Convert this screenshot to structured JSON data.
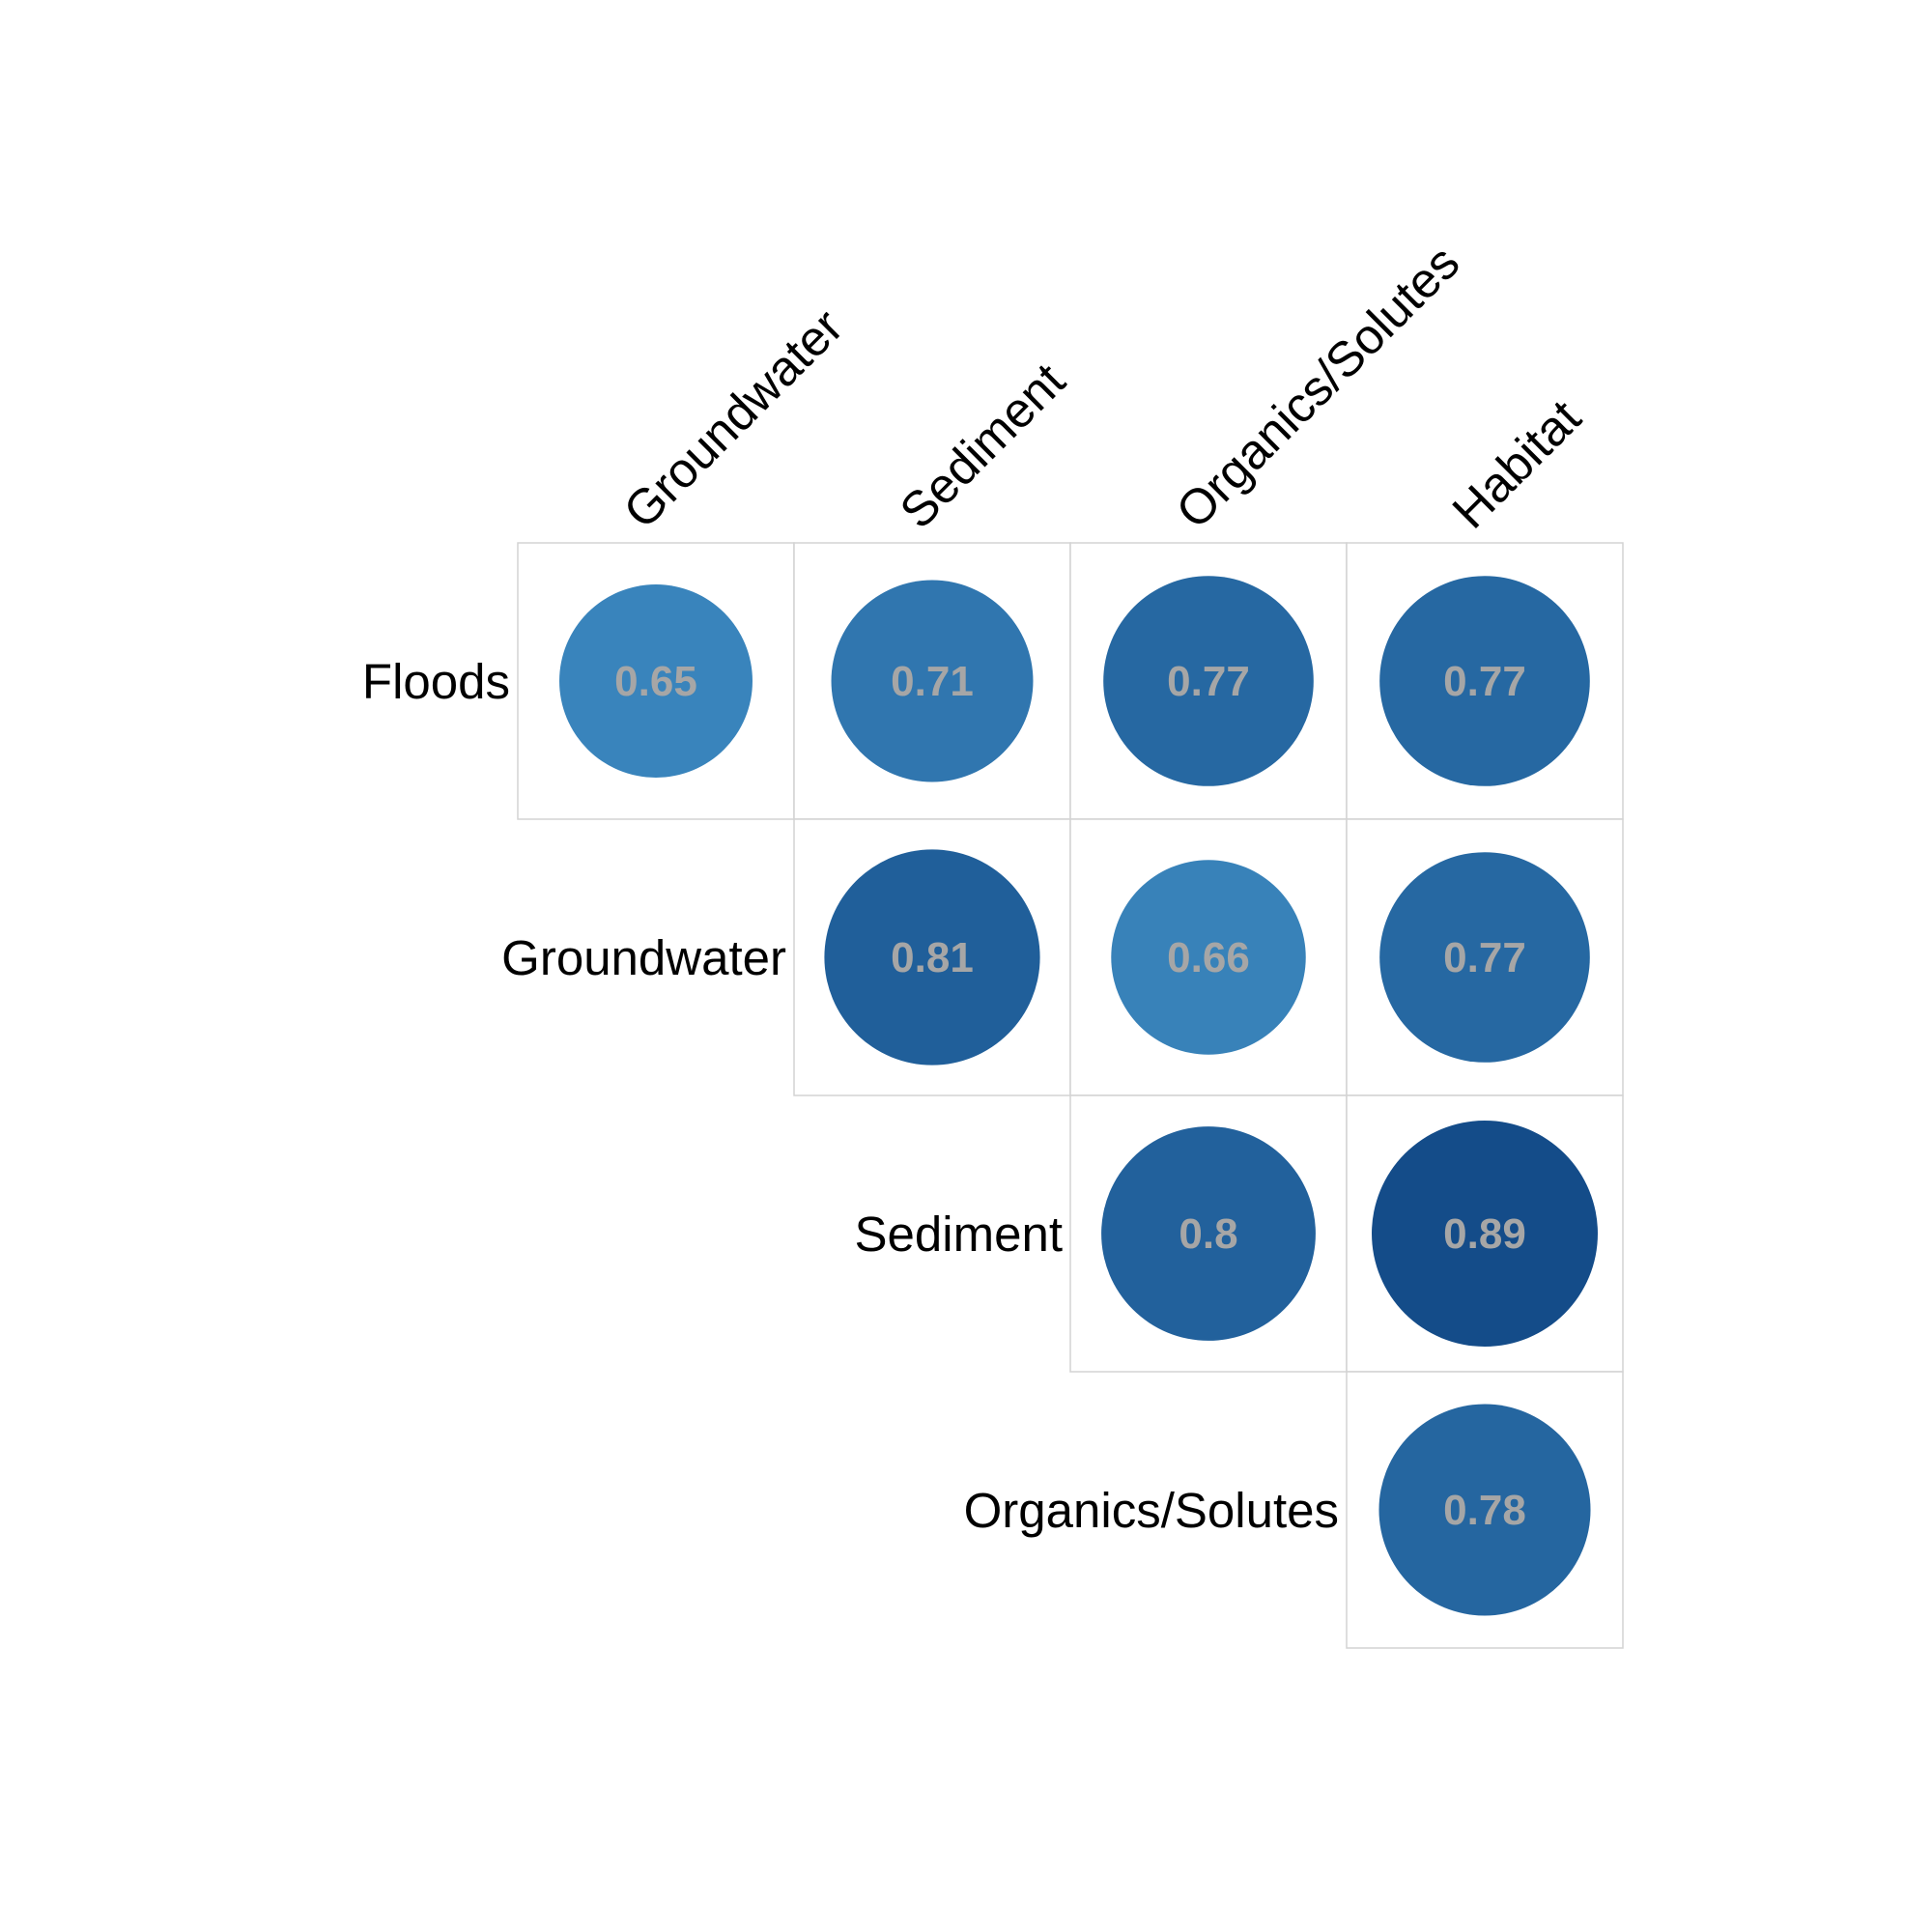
{
  "chart_data": {
    "type": "heatmap",
    "subtype": "correlation-circles-upper-triangle",
    "title": "",
    "row_labels": [
      "Floods",
      "Groundwater",
      "Sediment",
      "Organics/Solutes"
    ],
    "col_labels": [
      "Groundwater",
      "Sediment",
      "Organics/Solutes",
      "Habitat"
    ],
    "cells": [
      {
        "row": "Floods",
        "col": "Groundwater",
        "value": 0.65,
        "label": "0.65"
      },
      {
        "row": "Floods",
        "col": "Sediment",
        "value": 0.71,
        "label": "0.71"
      },
      {
        "row": "Floods",
        "col": "Organics/Solutes",
        "value": 0.77,
        "label": "0.77"
      },
      {
        "row": "Floods",
        "col": "Habitat",
        "value": 0.77,
        "label": "0.77"
      },
      {
        "row": "Groundwater",
        "col": "Sediment",
        "value": 0.81,
        "label": "0.81"
      },
      {
        "row": "Groundwater",
        "col": "Organics/Solutes",
        "value": 0.66,
        "label": "0.66"
      },
      {
        "row": "Groundwater",
        "col": "Habitat",
        "value": 0.77,
        "label": "0.77"
      },
      {
        "row": "Sediment",
        "col": "Organics/Solutes",
        "value": 0.8,
        "label": "0.8"
      },
      {
        "row": "Sediment",
        "col": "Habitat",
        "value": 0.89,
        "label": "0.89"
      },
      {
        "row": "Organics/Solutes",
        "col": "Habitat",
        "value": 0.78,
        "label": "0.78"
      }
    ],
    "colors": {
      "low": "#4190c6",
      "high": "#124a87",
      "value_text": "#a6a6a6",
      "grid": "#d3d3d3"
    },
    "value_range": [
      0.6,
      0.9
    ],
    "grid": true,
    "legend": "none"
  }
}
